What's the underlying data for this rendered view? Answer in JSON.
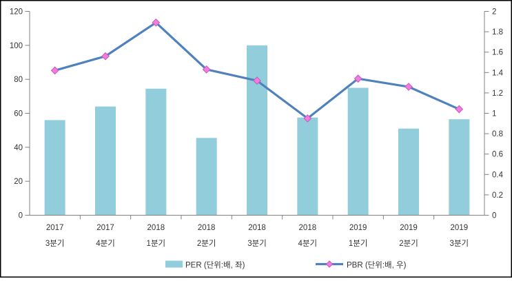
{
  "chart_data": {
    "type": "bar",
    "subtype": "bar-line-combo",
    "title": "",
    "categories": [
      {
        "year": "2017",
        "quarter": "3분기"
      },
      {
        "year": "2017",
        "quarter": "4분기"
      },
      {
        "year": "2018",
        "quarter": "1분기"
      },
      {
        "year": "2018",
        "quarter": "2분기"
      },
      {
        "year": "2018",
        "quarter": "3분기"
      },
      {
        "year": "2018",
        "quarter": "4분기"
      },
      {
        "year": "2019",
        "quarter": "1분기"
      },
      {
        "year": "2019",
        "quarter": "2분기"
      },
      {
        "year": "2019",
        "quarter": "3분기"
      }
    ],
    "series": [
      {
        "name": "PER (단위:배, 좌)",
        "type": "bar",
        "axis": "left",
        "color": "#92CDDC",
        "values": [
          56,
          64,
          74.5,
          45.5,
          100,
          57.5,
          75,
          51,
          56.5
        ]
      },
      {
        "name": "PBR (단위:배, 우)",
        "type": "line",
        "axis": "right",
        "color": "#4F81BD",
        "marker": "diamond",
        "marker_fill": "#F17CDE",
        "marker_stroke": "#C65BBB",
        "values": [
          1.42,
          1.56,
          1.89,
          1.43,
          1.32,
          0.95,
          1.34,
          1.26,
          1.04
        ]
      }
    ],
    "left_axis": {
      "min": 0,
      "max": 120,
      "step": 20,
      "tick_labels": [
        "0",
        "20",
        "40",
        "60",
        "80",
        "100",
        "120"
      ]
    },
    "right_axis": {
      "min": 0,
      "max": 2,
      "step": 0.2,
      "tick_labels": [
        "0",
        "0.2",
        "0.4",
        "0.6",
        "0.8",
        "1",
        "1.2",
        "1.4",
        "1.6",
        "1.8",
        "2"
      ]
    },
    "legend": {
      "position": "bottom",
      "items": [
        {
          "label": "PER (단위:배, 좌)",
          "swatch": "bar"
        },
        {
          "label": "PBR (단위:배, 우)",
          "swatch": "line-diamond"
        }
      ]
    },
    "grid": "off",
    "axis_color": "#808080",
    "text_color": "#333333",
    "border_color": "#000000",
    "background": "#FFFFFF"
  }
}
